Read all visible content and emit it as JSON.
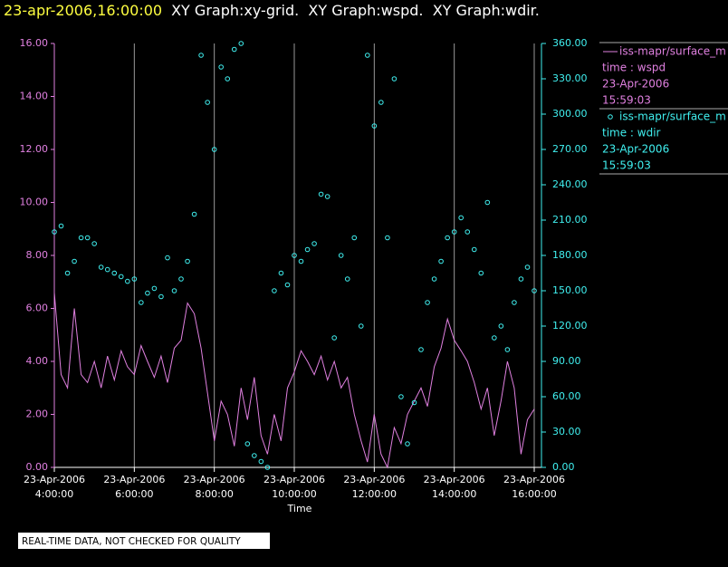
{
  "chart_data": {
    "type": "line",
    "title_time": "23-apr-2006,16:00:00",
    "title": "XY Graph:xy-grid.  XY Graph:wspd.  XY Graph:wdir.",
    "xlabel": "Time",
    "footer": "REAL-TIME DATA, NOT CHECKED FOR QUALITY",
    "grid": "x",
    "xlim": [
      4,
      16
    ],
    "xticks": [
      {
        "value": 4,
        "label": "23-Apr-2006 4:00:00"
      },
      {
        "value": 6,
        "label": "23-Apr-2006 6:00:00"
      },
      {
        "value": 8,
        "label": "23-Apr-2006 8:00:00"
      },
      {
        "value": 10,
        "label": "23-Apr-2006 10:00:00"
      },
      {
        "value": 12,
        "label": "23-Apr-2006 12:00:00"
      },
      {
        "value": 14,
        "label": "23-Apr-2006 14:00:00"
      },
      {
        "value": 16,
        "label": "23-Apr-2006 16:00:00"
      }
    ],
    "ylim": [
      0,
      16
    ],
    "yticks": [
      {
        "value": 0,
        "label": "0.00"
      },
      {
        "value": 2,
        "label": "2.00"
      },
      {
        "value": 4,
        "label": "4.00"
      },
      {
        "value": 6,
        "label": "6.00"
      },
      {
        "value": 8,
        "label": "8.00"
      },
      {
        "value": 10,
        "label": "10.00"
      },
      {
        "value": 12,
        "label": "12.00"
      },
      {
        "value": 14,
        "label": "14.00"
      },
      {
        "value": 16,
        "label": "16.00"
      }
    ],
    "y2lim": [
      0,
      360
    ],
    "y2ticks": [
      {
        "value": 0,
        "label": "0.00"
      },
      {
        "value": 30,
        "label": "30.00"
      },
      {
        "value": 60,
        "label": "60.00"
      },
      {
        "value": 90,
        "label": "90.00"
      },
      {
        "value": 120,
        "label": "120.00"
      },
      {
        "value": 150,
        "label": "150.00"
      },
      {
        "value": 180,
        "label": "180.00"
      },
      {
        "value": 210,
        "label": "210.00"
      },
      {
        "value": 240,
        "label": "240.00"
      },
      {
        "value": 270,
        "label": "270.00"
      },
      {
        "value": 300,
        "label": "300.00"
      },
      {
        "value": 330,
        "label": "330.00"
      },
      {
        "value": 360,
        "label": "360.00"
      }
    ],
    "series": [
      {
        "name": "iss-mapr/surface_m",
        "type": "line",
        "axis": "y",
        "color": "#e080e0",
        "legend_lines": [
          "time : wspd",
          "23-Apr-2006",
          "15:59:03"
        ],
        "x": [
          4,
          4.17,
          4.33,
          4.5,
          4.67,
          4.83,
          5,
          5.17,
          5.33,
          5.5,
          5.67,
          5.83,
          6,
          6.17,
          6.33,
          6.5,
          6.67,
          6.83,
          7,
          7.17,
          7.33,
          7.5,
          7.67,
          7.83,
          8,
          8.17,
          8.33,
          8.5,
          8.67,
          8.83,
          9,
          9.17,
          9.33,
          9.5,
          9.67,
          9.83,
          10,
          10.17,
          10.33,
          10.5,
          10.67,
          10.83,
          11,
          11.17,
          11.33,
          11.5,
          11.67,
          11.83,
          12,
          12.17,
          12.33,
          12.5,
          12.67,
          12.83,
          13,
          13.17,
          13.33,
          13.5,
          13.67,
          13.83,
          14,
          14.17,
          14.33,
          14.5,
          14.67,
          14.83,
          15,
          15.17,
          15.33,
          15.5,
          15.67,
          15.83,
          16
        ],
        "values": [
          6.6,
          3.5,
          3.0,
          6.0,
          3.5,
          3.2,
          4.0,
          3.0,
          4.2,
          3.3,
          4.4,
          3.8,
          3.5,
          4.6,
          4.0,
          3.4,
          4.2,
          3.2,
          4.5,
          4.8,
          6.2,
          5.8,
          4.5,
          2.8,
          1.0,
          2.5,
          2.0,
          0.8,
          3.0,
          1.8,
          3.4,
          1.2,
          0.5,
          2.0,
          1.0,
          3.0,
          3.6,
          4.4,
          4.0,
          3.5,
          4.2,
          3.3,
          4.0,
          3.0,
          3.4,
          2.0,
          1.0,
          0.2,
          2.0,
          0.5,
          0.0,
          1.5,
          0.9,
          2.0,
          2.5,
          3.0,
          2.3,
          3.8,
          4.5,
          5.6,
          4.8,
          4.4,
          4.0,
          3.2,
          2.2,
          3.0,
          1.2,
          2.5,
          4.0,
          3.0,
          0.5,
          1.8,
          2.2
        ]
      },
      {
        "name": "iss-mapr/surface_m",
        "type": "scatter",
        "axis": "y2",
        "color": "#40f0f0",
        "legend_lines": [
          "time : wdir",
          "23-Apr-2006",
          "15:59:03"
        ],
        "x": [
          4,
          4.17,
          4.33,
          4.5,
          4.67,
          4.83,
          5,
          5.17,
          5.33,
          5.5,
          5.67,
          5.83,
          6,
          6.17,
          6.33,
          6.5,
          6.67,
          6.83,
          7,
          7.17,
          7.33,
          7.5,
          7.67,
          7.83,
          8,
          8.17,
          8.33,
          8.5,
          8.67,
          8.83,
          9,
          9.17,
          9.33,
          9.5,
          9.67,
          9.83,
          10,
          10.17,
          10.33,
          10.5,
          10.67,
          10.83,
          11,
          11.17,
          11.33,
          11.5,
          11.67,
          11.83,
          12,
          12.17,
          12.33,
          12.5,
          12.67,
          12.83,
          13,
          13.17,
          13.33,
          13.5,
          13.67,
          13.83,
          14,
          14.17,
          14.33,
          14.5,
          14.67,
          14.83,
          15,
          15.17,
          15.33,
          15.5,
          15.67,
          15.83,
          16
        ],
        "values": [
          200,
          205,
          165,
          175,
          195,
          195,
          190,
          170,
          168,
          165,
          162,
          158,
          160,
          140,
          148,
          152,
          145,
          178,
          150,
          160,
          175,
          215,
          350,
          310,
          270,
          340,
          330,
          355,
          360,
          20,
          10,
          5,
          0,
          150,
          165,
          155,
          180,
          175,
          185,
          190,
          232,
          230,
          110,
          180,
          160,
          195,
          120,
          350,
          290,
          310,
          195,
          330,
          60,
          20,
          55,
          100,
          140,
          160,
          175,
          195,
          200,
          212,
          200,
          185,
          165,
          225,
          110,
          120,
          100,
          140,
          160,
          170,
          150
        ]
      }
    ]
  }
}
